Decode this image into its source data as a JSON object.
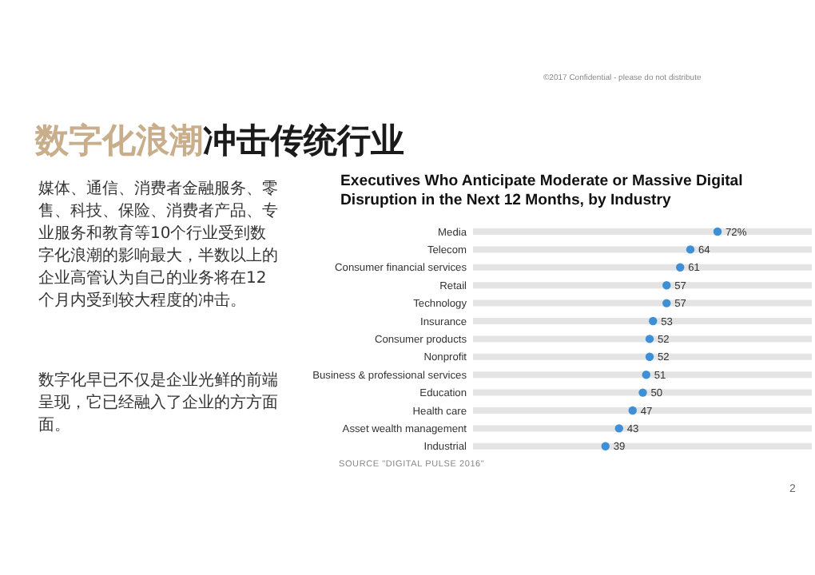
{
  "chart_data": {
    "type": "lollipop",
    "orientation": "horizontal",
    "title": "Executives Who Anticipate Moderate or Massive Digital Disruption in the Next 12 Months, by Industry",
    "categories": [
      "Media",
      "Telecom",
      "Consumer financial services",
      "Retail",
      "Technology",
      "Insurance",
      "Consumer products",
      "Nonprofit",
      "Business & professional services",
      "Education",
      "Health care",
      "Asset wealth management",
      "Industrial"
    ],
    "values": [
      72,
      64,
      61,
      57,
      57,
      53,
      52,
      52,
      51,
      50,
      47,
      43,
      39
    ],
    "value_labels": [
      "72%",
      "64",
      "61",
      "57",
      "57",
      "53",
      "52",
      "52",
      "51",
      "50",
      "47",
      "43",
      "39"
    ],
    "color": "#3d8fd6",
    "grid": "y",
    "tick_labels": "y",
    "marker": "circle",
    "annotations": [
      "数字化浪潮",
      "冲击传统行业",
      "媒体、通信、消费者金融服务、零售、科技、保险、消费者产品、专业服务和教育等10个行业受到数字化浪潮的影响最大，半数以上的企业高管认为自己的业务将在12个月内受到较大程度的冲击。",
      "数字化早已不仅是企业光鲜的前端呈现，它已经融入了企业的方方面面。",
      "SOURCE \"DIGITAL PULSE 2016\"",
      "©2017 Confidential - please do not distribute",
      "2"
    ]
  }
}
